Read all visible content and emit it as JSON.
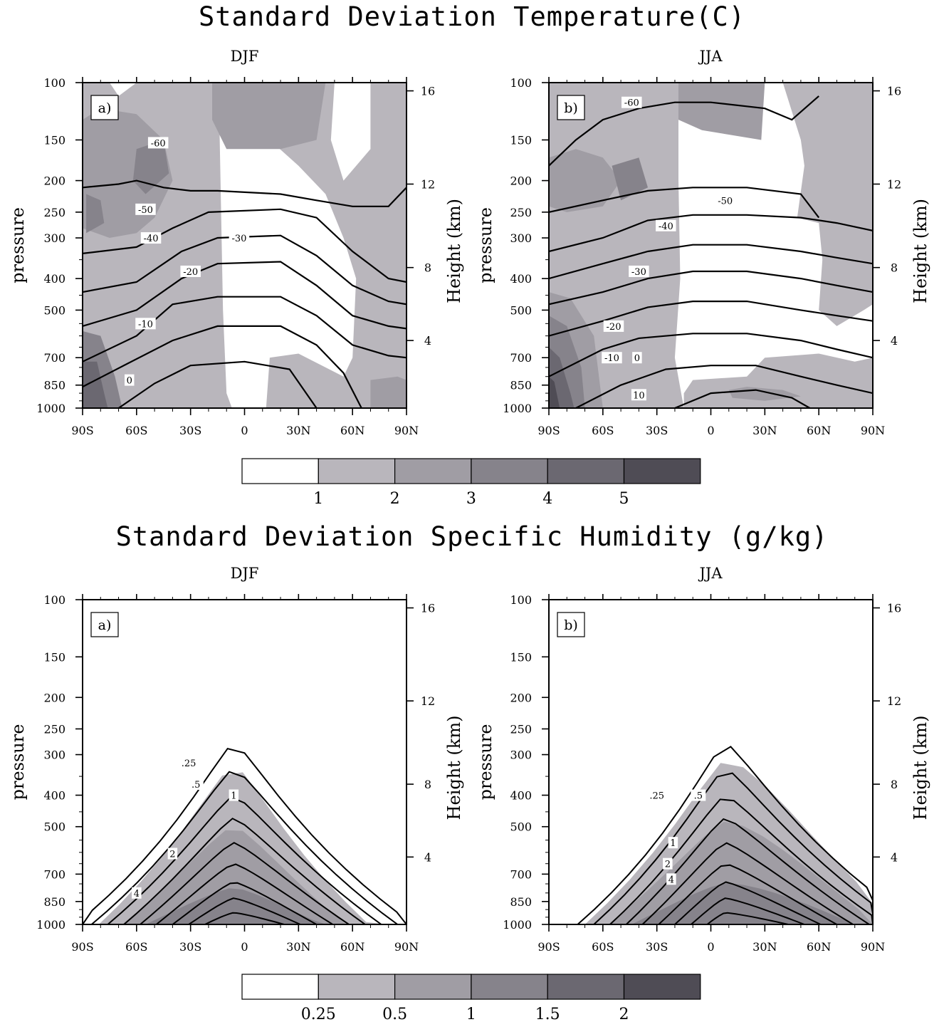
{
  "figures": [
    {
      "title": "Standard Deviation Temperature(C)",
      "panels": [
        {
          "season": "DJF",
          "tag": "a)",
          "contour_labels": [
            {
              "text": "-60",
              "lat": -48,
              "p": 153
            },
            {
              "text": "-50",
              "lat": -55,
              "p": 245
            },
            {
              "text": "-40",
              "lat": -52,
              "p": 300
            },
            {
              "text": "-30",
              "lat": -3,
              "p": 300
            },
            {
              "text": "-20",
              "lat": -30,
              "p": 380
            },
            {
              "text": "-10",
              "lat": -55,
              "p": 550
            },
            {
              "text": "0",
              "lat": -64,
              "p": 820
            }
          ]
        },
        {
          "season": "JJA",
          "tag": "b)",
          "contour_labels": [
            {
              "text": "-60",
              "lat": -44,
              "p": 115
            },
            {
              "text": "-50",
              "lat": 8,
              "p": 230
            },
            {
              "text": "-40",
              "lat": -25,
              "p": 275
            },
            {
              "text": "-30",
              "lat": -40,
              "p": 380
            },
            {
              "text": "-20",
              "lat": -54,
              "p": 560
            },
            {
              "text": "-10",
              "lat": -55,
              "p": 700
            },
            {
              "text": "0",
              "lat": -41,
              "p": 700
            },
            {
              "text": "10",
              "lat": -40,
              "p": 910
            }
          ]
        }
      ],
      "colorbar_ticks": [
        "1",
        "2",
        "3",
        "4",
        "5"
      ]
    },
    {
      "title": "Standard Deviation Specific Humidity (g/kg)",
      "panels": [
        {
          "season": "DJF",
          "tag": "a)",
          "contour_labels": [
            {
              "text": ".25",
              "lat": -31,
              "p": 318
            },
            {
              "text": ".5",
              "lat": -27,
              "p": 370
            },
            {
              "text": "1",
              "lat": -6,
              "p": 400
            },
            {
              "text": "2",
              "lat": -40,
              "p": 605
            },
            {
              "text": "4",
              "lat": -60,
              "p": 800
            }
          ]
        },
        {
          "season": "JJA",
          "tag": "b)",
          "contour_labels": [
            {
              "text": ".25",
              "lat": -30,
              "p": 400
            },
            {
              "text": ".5",
              "lat": -7,
              "p": 400
            },
            {
              "text": "1",
              "lat": -21,
              "p": 560
            },
            {
              "text": "2",
              "lat": -24,
              "p": 650
            },
            {
              "text": "4",
              "lat": -22,
              "p": 725
            }
          ]
        }
      ],
      "colorbar_ticks": [
        "0.25",
        "0.5",
        "1",
        "1.5",
        "2"
      ]
    }
  ],
  "axis": {
    "y_label": "pressure",
    "y_right_label": "Height (km)",
    "pressure_ticks": [
      "100",
      "150",
      "200",
      "250",
      "300",
      "400",
      "500",
      "700",
      "850",
      "1000"
    ],
    "height_ticks": [
      "4",
      "8",
      "12",
      "16"
    ],
    "lat_ticks": [
      "90S",
      "60S",
      "30S",
      "0",
      "30N",
      "60N",
      "90N"
    ]
  },
  "colors": {
    "shade_levels": [
      "#ffffff",
      "#b9b6bc",
      "#a09da4",
      "#86838b",
      "#6b6871",
      "#4f4c55"
    ],
    "contour": "#000000"
  },
  "chart_data": [
    {
      "type": "heatmap",
      "title": "Standard Deviation Temperature(C)",
      "subtitle": "DJF",
      "xlabel": "",
      "ylabel": "pressure",
      "y2label": "Height (km)",
      "x_ticks": [
        "90S",
        "60S",
        "30S",
        "0",
        "30N",
        "60N",
        "90N"
      ],
      "xlim": [
        -90,
        90
      ],
      "ylim": [
        1000,
        100
      ],
      "y_scale": "log",
      "shading_levels": [
        1,
        2,
        3,
        4,
        5
      ],
      "contour_levels": [
        -60,
        -50,
        -40,
        -30,
        -20,
        -10,
        0
      ]
    },
    {
      "type": "heatmap",
      "title": "Standard Deviation Temperature(C)",
      "subtitle": "JJA",
      "xlabel": "",
      "ylabel": "pressure",
      "y2label": "Height (km)",
      "x_ticks": [
        "90S",
        "60S",
        "30S",
        "0",
        "30N",
        "60N",
        "90N"
      ],
      "xlim": [
        -90,
        90
      ],
      "ylim": [
        1000,
        100
      ],
      "y_scale": "log",
      "shading_levels": [
        1,
        2,
        3,
        4,
        5
      ],
      "contour_levels": [
        -60,
        -50,
        -40,
        -30,
        -20,
        -10,
        0,
        10
      ]
    },
    {
      "type": "heatmap",
      "title": "Standard Deviation Specific Humidity (g/kg)",
      "subtitle": "DJF",
      "xlabel": "",
      "ylabel": "pressure",
      "y2label": "Height (km)",
      "x_ticks": [
        "90S",
        "60S",
        "30S",
        "0",
        "30N",
        "60N",
        "90N"
      ],
      "xlim": [
        -90,
        90
      ],
      "ylim": [
        1000,
        100
      ],
      "y_scale": "log",
      "shading_levels": [
        0.25,
        0.5,
        1,
        1.5,
        2
      ],
      "contour_levels": [
        0.25,
        0.5,
        1,
        2,
        4
      ]
    },
    {
      "type": "heatmap",
      "title": "Standard Deviation Specific Humidity (g/kg)",
      "subtitle": "JJA",
      "xlabel": "",
      "ylabel": "pressure",
      "y2label": "Height (km)",
      "x_ticks": [
        "90S",
        "60S",
        "30S",
        "0",
        "30N",
        "60N",
        "90N"
      ],
      "xlim": [
        -90,
        90
      ],
      "ylim": [
        1000,
        100
      ],
      "y_scale": "log",
      "shading_levels": [
        0.25,
        0.5,
        1,
        1.5,
        2
      ],
      "contour_levels": [
        0.25,
        0.5,
        1,
        2,
        4
      ]
    }
  ]
}
